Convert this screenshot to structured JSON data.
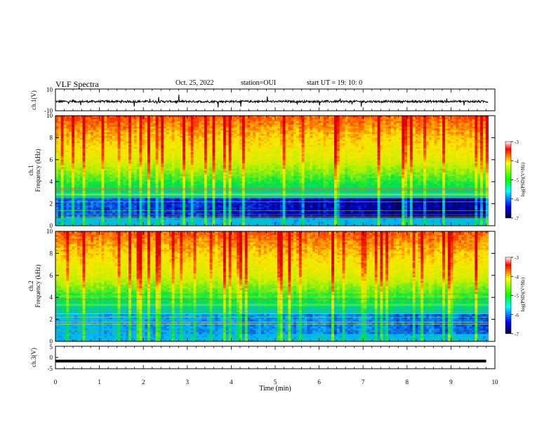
{
  "header": {
    "title": "VLF Spectra",
    "date": "Oct. 25, 2022",
    "station": "station=OUI",
    "start": "start  UT  =   19: 10: 0"
  },
  "chart_data": [
    {
      "type": "line",
      "id": "ch1-waveform",
      "ylabel": "ch.1(V)",
      "ylim": [
        -10,
        10
      ],
      "yticks": [
        "10",
        "-10"
      ],
      "xlim": [
        0,
        10
      ],
      "approx_mean": -1.5,
      "approx_noise_amplitude": 2
    },
    {
      "type": "heatmap",
      "id": "ch1-spectrogram",
      "ylabel_top": "ch.1",
      "ylabel": "Frequency (kHz)",
      "ylim": [
        0,
        10
      ],
      "yticks": [
        0,
        2,
        4,
        6,
        8,
        10
      ],
      "xlim": [
        0,
        9.85
      ],
      "colorbar": {
        "label": "log(PSD)(V²/Hz)",
        "range": [
          -7,
          -3
        ],
        "ticks": [
          "-3",
          "-4",
          "-5",
          "-6",
          "-7"
        ]
      }
    },
    {
      "type": "heatmap",
      "id": "ch2-spectrogram",
      "ylabel_top": "ch.2",
      "ylabel": "Frequency (kHz)",
      "ylim": [
        0,
        10
      ],
      "yticks": [
        0,
        2,
        4,
        6,
        8,
        10
      ],
      "xlim": [
        0,
        9.85
      ],
      "colorbar": {
        "label": "log(PSD)(V²/Hz)",
        "range": [
          -7,
          -3
        ],
        "ticks": [
          "-3",
          "-4",
          "-5",
          "-6",
          "-7"
        ]
      }
    },
    {
      "type": "line",
      "id": "ch3-waveform",
      "ylabel": "ch.3(V)",
      "ylim": [
        -5,
        5
      ],
      "yticks": [
        "5",
        "0",
        "-5"
      ],
      "xlim": [
        0,
        10
      ],
      "value": -1.6
    }
  ],
  "xaxis": {
    "label": "Time (min)",
    "range": [
      0,
      10
    ],
    "ticks": [
      "0",
      "1",
      "2",
      "3",
      "4",
      "5",
      "6",
      "7",
      "8",
      "9",
      "10"
    ]
  },
  "colors": {
    "low": "#000033",
    "mid_low": "#0000ff",
    "mid": "#00ff00",
    "mid_high": "#ffff00",
    "high": "#ff0000"
  }
}
